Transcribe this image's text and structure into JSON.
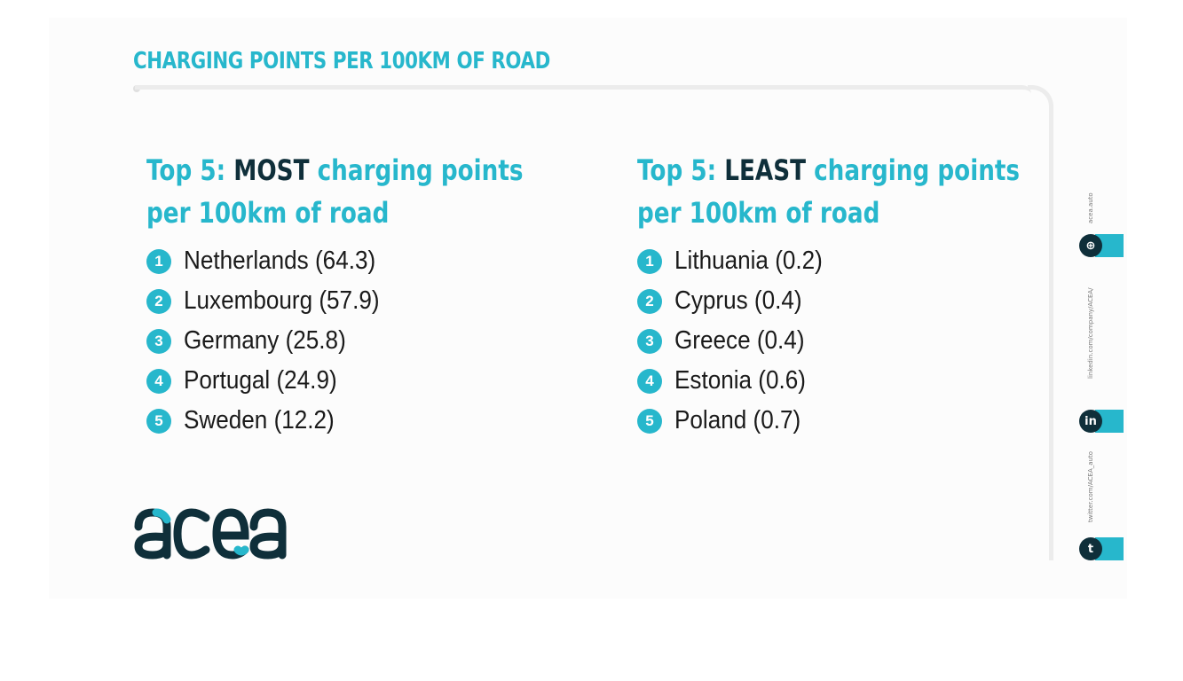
{
  "header": {
    "title": "CHARGING POINTS PER 100KM OF ROAD"
  },
  "most": {
    "heading_prefix": "Top 5: ",
    "heading_highlight": "MOST",
    "heading_suffix": " charging points",
    "heading_line2": "per 100km of road",
    "items": [
      {
        "num": "1",
        "text": "Netherlands (64.3)"
      },
      {
        "num": "2",
        "text": "Luxembourg (57.9)"
      },
      {
        "num": "3",
        "text": "Germany (25.8)"
      },
      {
        "num": "4",
        "text": "Portugal (24.9)"
      },
      {
        "num": "5",
        "text": "Sweden (12.2)"
      }
    ]
  },
  "least": {
    "heading_prefix": "Top 5: ",
    "heading_highlight": "LEAST",
    "heading_suffix": " charging points",
    "heading_line2": "per 100km of road",
    "items": [
      {
        "num": "1",
        "text": "Lithuania (0.2)"
      },
      {
        "num": "2",
        "text": "Cyprus (0.4)"
      },
      {
        "num": "3",
        "text": "Greece (0.4)"
      },
      {
        "num": "4",
        "text": "Estonia (0.6)"
      },
      {
        "num": "5",
        "text": "Poland (0.7)"
      }
    ]
  },
  "logo": {
    "text": "acea"
  },
  "social": {
    "web_url": "acea.auto",
    "linkedin_url": "linkedin.com/company/ACEA/",
    "twitter_url": "twitter.com/ACEA_auto",
    "web_glyph": "⊕",
    "linkedin_glyph": "in",
    "twitter_glyph": "t"
  },
  "colors": {
    "accent": "#27b7cc",
    "dark": "#0f2f3a"
  }
}
